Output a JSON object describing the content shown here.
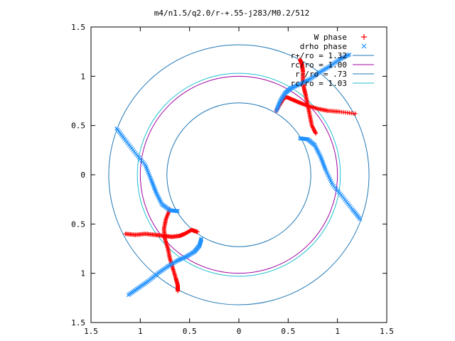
{
  "chart_data": {
    "type": "scatter",
    "title": "m4/n1.5/q2.0/r-+.55-j283/M0.2/512",
    "xlabel": "",
    "ylabel": "",
    "xlim": [
      -1.5,
      1.5
    ],
    "ylim": [
      -1.5,
      1.5
    ],
    "x_ticks": [
      -1.5,
      -1,
      -0.5,
      0,
      0.5,
      1,
      1.5
    ],
    "y_ticks": [
      1.5,
      1,
      0.5,
      0,
      -0.5,
      -1,
      -1.5
    ],
    "x_tick_labels": [
      "1.5",
      "1",
      "0.5",
      "0",
      "0.5",
      "1",
      "1.5"
    ],
    "y_tick_labels": [
      "1.5",
      "1",
      "0.5",
      "0",
      "0.5",
      "1",
      "1.5"
    ],
    "legend_position": "top-right",
    "grid": false,
    "series": [
      {
        "name": "W phase",
        "marker": "+",
        "color": "#ff0000",
        "arms": [
          [
            [
              0.78,
              0.42
            ],
            [
              0.74,
              0.5
            ],
            [
              0.72,
              0.6
            ],
            [
              0.7,
              0.7
            ],
            [
              0.68,
              0.8
            ],
            [
              0.66,
              0.88
            ],
            [
              0.65,
              0.96
            ],
            [
              0.65,
              1.05
            ],
            [
              0.64,
              1.12
            ],
            [
              0.62,
              1.17
            ]
          ],
          [
            [
              0.38,
              0.65
            ],
            [
              0.42,
              0.72
            ],
            [
              0.45,
              0.77
            ],
            [
              0.48,
              0.79
            ],
            [
              0.55,
              0.76
            ],
            [
              0.62,
              0.73
            ],
            [
              0.7,
              0.7
            ],
            [
              0.8,
              0.67
            ],
            [
              0.9,
              0.65
            ],
            [
              1.02,
              0.64
            ],
            [
              1.18,
              0.62
            ]
          ],
          [
            [
              -0.42,
              -0.58
            ],
            [
              -0.48,
              -0.56
            ],
            [
              -0.55,
              -0.6
            ],
            [
              -0.6,
              -0.62
            ],
            [
              -0.68,
              -0.63
            ],
            [
              -0.76,
              -0.62
            ],
            [
              -0.85,
              -0.61
            ],
            [
              -0.95,
              -0.6
            ],
            [
              -1.05,
              -0.61
            ],
            [
              -1.15,
              -0.6
            ]
          ],
          [
            [
              -0.7,
              -0.35
            ],
            [
              -0.74,
              -0.45
            ],
            [
              -0.76,
              -0.55
            ],
            [
              -0.75,
              -0.65
            ],
            [
              -0.72,
              -0.75
            ],
            [
              -0.7,
              -0.85
            ],
            [
              -0.67,
              -0.95
            ],
            [
              -0.64,
              -1.05
            ],
            [
              -0.62,
              -1.12
            ],
            [
              -0.62,
              -1.18
            ]
          ]
        ]
      },
      {
        "name": "drho phase",
        "marker": "x",
        "color": "#1e90ff",
        "arms": [
          [
            [
              1.23,
              -0.45
            ],
            [
              1.15,
              -0.35
            ],
            [
              1.05,
              -0.22
            ],
            [
              0.95,
              -0.1
            ],
            [
              0.88,
              0.05
            ],
            [
              0.83,
              0.18
            ],
            [
              0.77,
              0.3
            ],
            [
              0.7,
              0.36
            ],
            [
              0.62,
              0.37
            ]
          ],
          [
            [
              -0.38,
              -0.65
            ],
            [
              -0.4,
              -0.72
            ],
            [
              -0.45,
              -0.78
            ],
            [
              -0.53,
              -0.83
            ],
            [
              -0.62,
              -0.87
            ],
            [
              -0.72,
              -0.93
            ],
            [
              -0.82,
              -1.0
            ],
            [
              -0.92,
              -1.08
            ],
            [
              -1.02,
              -1.15
            ],
            [
              -1.12,
              -1.22
            ]
          ],
          [
            [
              0.38,
              0.65
            ],
            [
              0.42,
              0.75
            ],
            [
              0.47,
              0.83
            ],
            [
              0.53,
              0.88
            ],
            [
              0.62,
              0.92
            ],
            [
              0.72,
              0.97
            ],
            [
              0.82,
              1.04
            ],
            [
              0.92,
              1.1
            ],
            [
              1.02,
              1.17
            ],
            [
              1.12,
              1.22
            ]
          ],
          [
            [
              -0.62,
              -0.37
            ],
            [
              -0.7,
              -0.36
            ],
            [
              -0.78,
              -0.3
            ],
            [
              -0.84,
              -0.18
            ],
            [
              -0.89,
              -0.05
            ],
            [
              -0.95,
              0.1
            ],
            [
              -1.05,
              0.22
            ],
            [
              -1.15,
              0.35
            ],
            [
              -1.24,
              0.47
            ]
          ]
        ]
      },
      {
        "name": "r+/ro = 1.32",
        "type": "circle",
        "radius": 1.32,
        "color": "#1f77b4"
      },
      {
        "name": "rc/ro = 1.00",
        "type": "circle",
        "radius": 1.0,
        "color": "#a000a0"
      },
      {
        "name": "r-/ro = .73",
        "type": "circle",
        "radius": 0.73,
        "color": "#1f77b4"
      },
      {
        "name": "rc/ro = 1.03",
        "type": "circle",
        "radius": 1.03,
        "color": "#20c0d0"
      }
    ]
  }
}
